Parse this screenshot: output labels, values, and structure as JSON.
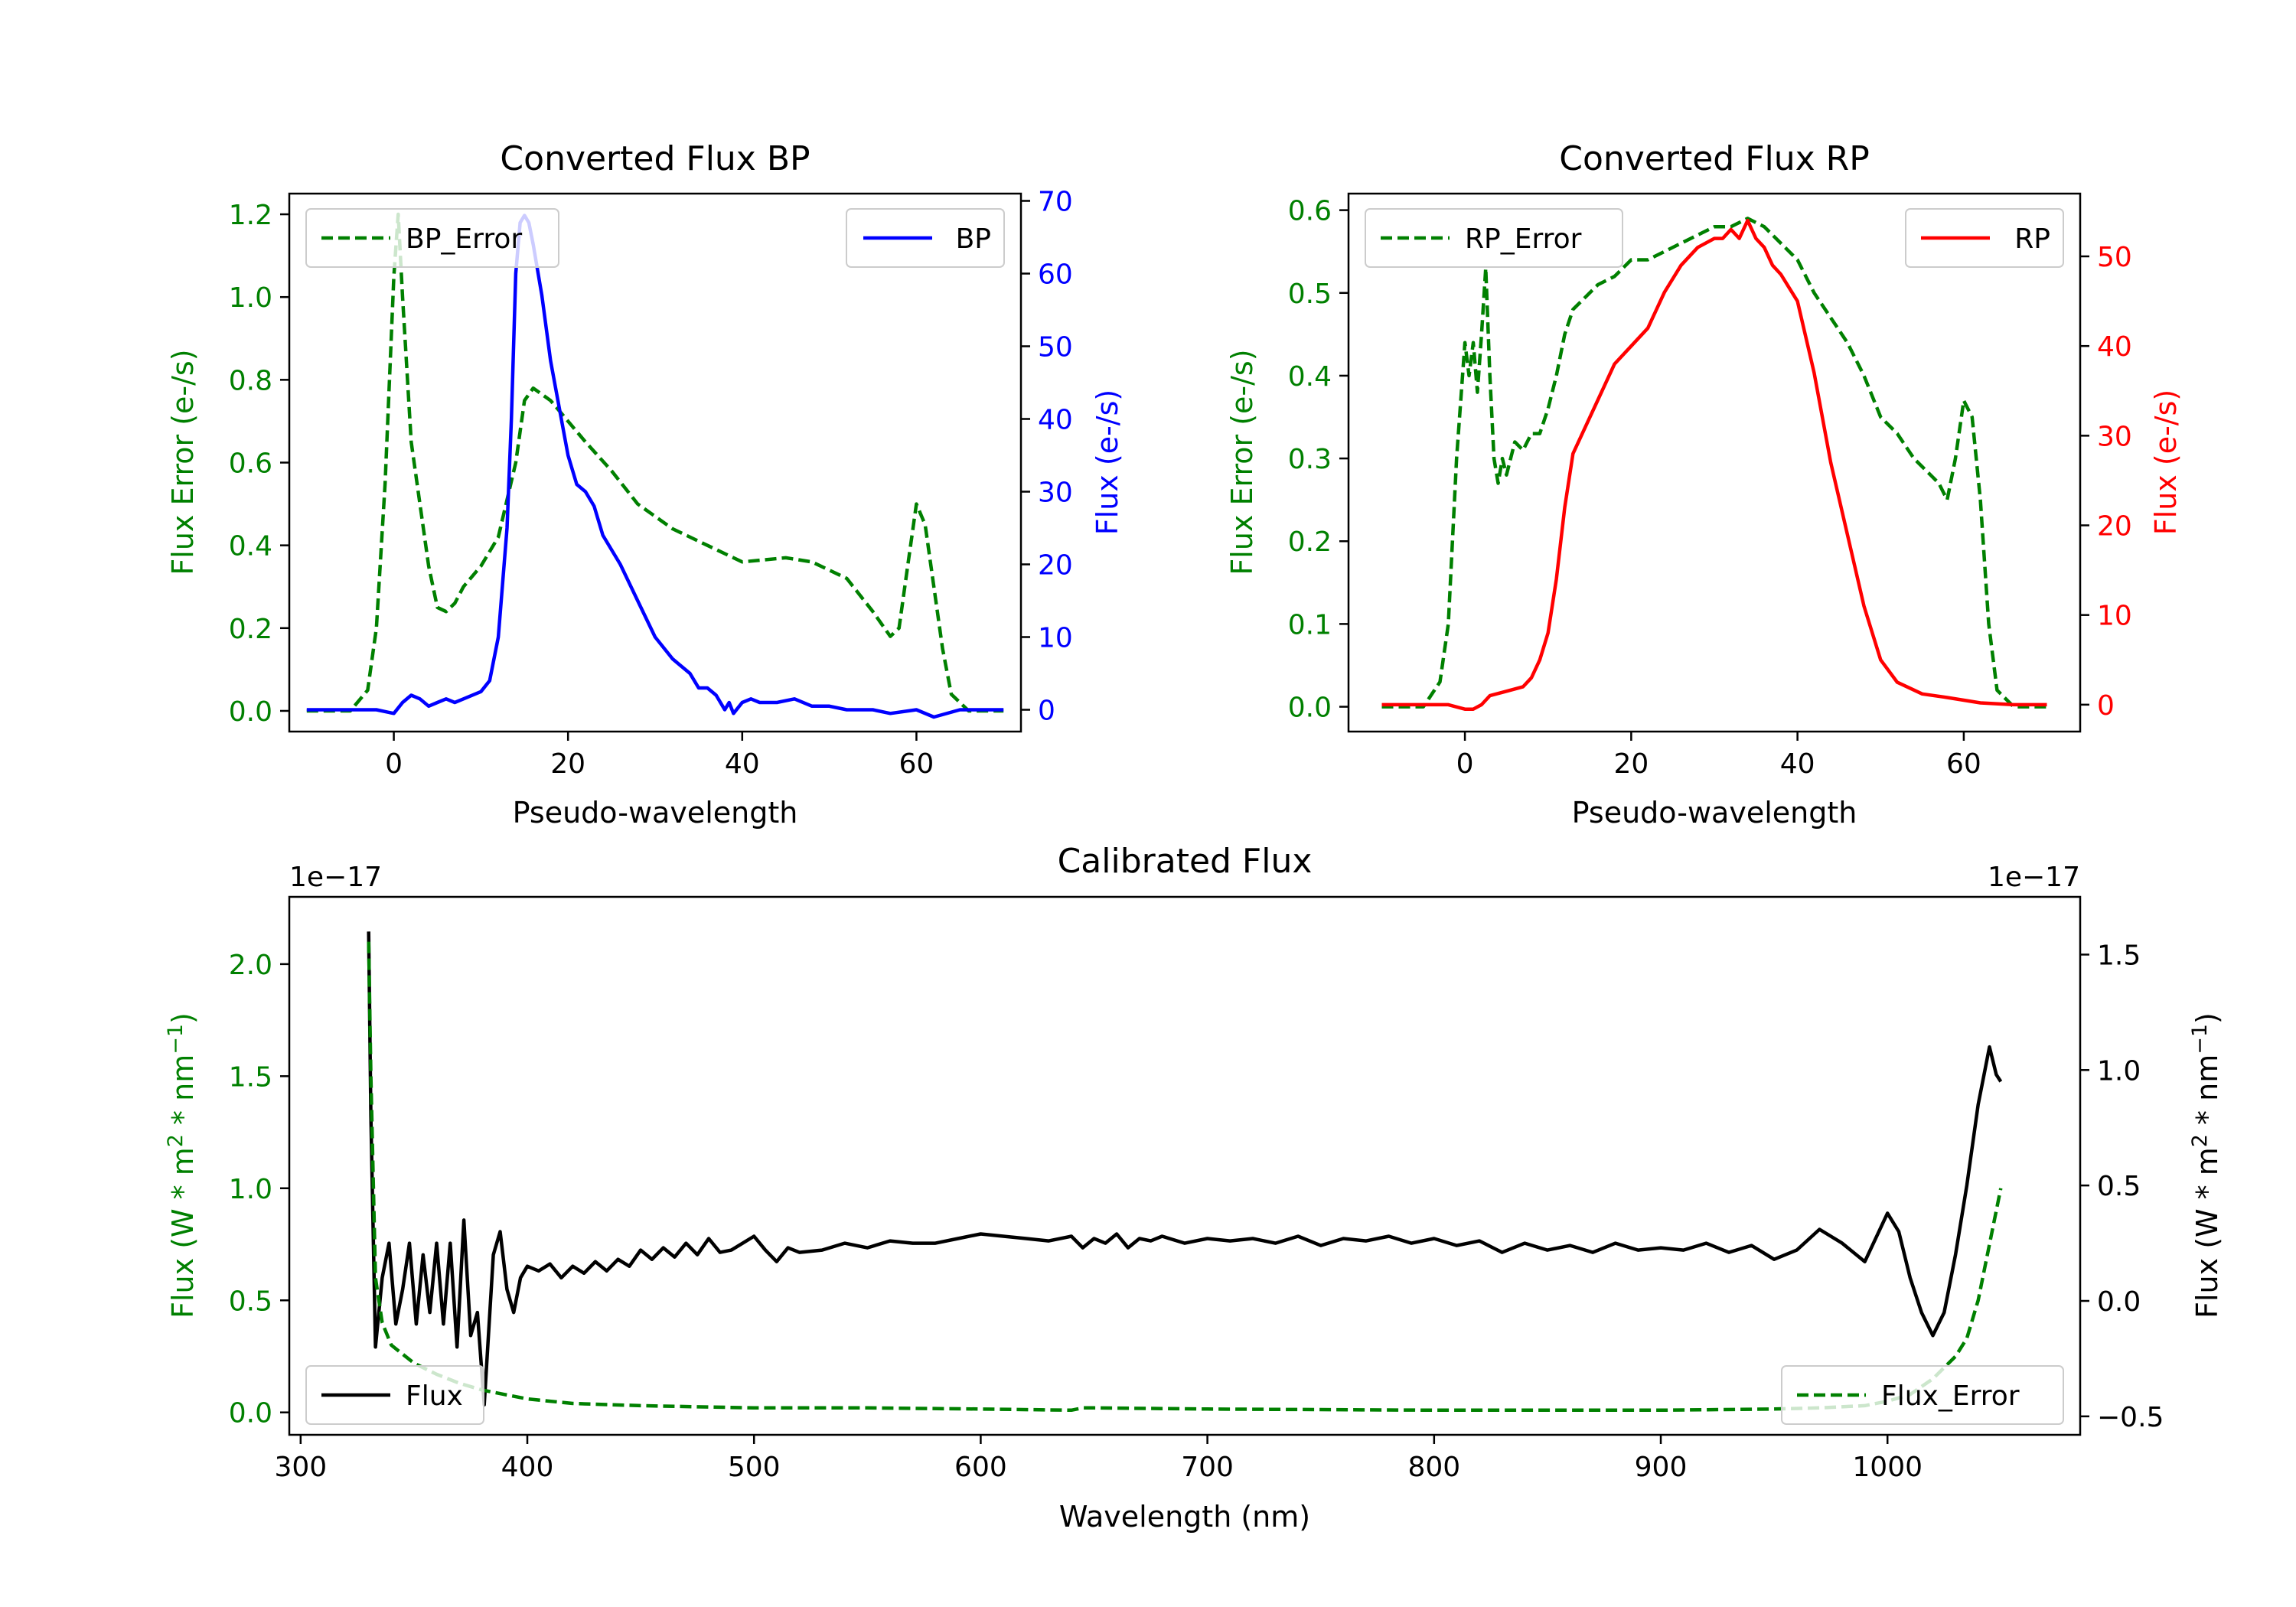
{
  "chart_data": [
    {
      "type": "line",
      "title": "Converted Flux BP",
      "xlabel": "Pseudo-wavelength",
      "ylabel_left": "Flux Error (e-/s)",
      "ylabel_right": "Flux (e-/s)",
      "xlim": [
        -12,
        72
      ],
      "ylim_left": [
        -0.05,
        1.25
      ],
      "ylim_right": [
        -3.0,
        71.0
      ],
      "xticks": [
        0,
        20,
        40,
        60
      ],
      "xtick_labels": [
        "0",
        "20",
        "40",
        "60"
      ],
      "yticks_left": [
        0.0,
        0.2,
        0.4,
        0.6,
        0.8,
        1.0,
        1.2
      ],
      "ytick_labels_left": [
        "0.0",
        "0.2",
        "0.4",
        "0.6",
        "0.8",
        "1.0",
        "1.2"
      ],
      "yticks_right": [
        0,
        10,
        20,
        30,
        40,
        50,
        60,
        70
      ],
      "ytick_labels_right": [
        "0",
        "10",
        "20",
        "30",
        "40",
        "50",
        "60",
        "70"
      ],
      "series": [
        {
          "name": "BP_Error",
          "axis": "left",
          "color": "#008000",
          "style": "dashed",
          "legend": "upper-left",
          "x": [
            -10,
            -5,
            -3,
            -2,
            -1,
            0,
            0.5,
            1,
            2,
            3,
            4,
            5,
            6,
            7,
            8,
            10,
            12,
            14,
            15,
            16,
            18,
            20,
            22,
            25,
            28,
            32,
            36,
            38,
            40,
            45,
            48,
            52,
            55,
            57,
            58,
            59,
            60,
            61,
            62,
            63,
            64,
            66,
            70
          ],
          "values": [
            0.0,
            0.0,
            0.05,
            0.2,
            0.55,
            1.05,
            1.2,
            1.0,
            0.65,
            0.5,
            0.35,
            0.25,
            0.24,
            0.26,
            0.3,
            0.35,
            0.42,
            0.6,
            0.75,
            0.78,
            0.75,
            0.7,
            0.65,
            0.58,
            0.5,
            0.44,
            0.4,
            0.38,
            0.36,
            0.37,
            0.36,
            0.32,
            0.24,
            0.18,
            0.2,
            0.35,
            0.5,
            0.45,
            0.3,
            0.15,
            0.04,
            0.0,
            0.0
          ]
        },
        {
          "name": "BP",
          "axis": "right",
          "color": "#0000ff",
          "style": "solid",
          "legend": "upper-right",
          "x": [
            -10,
            -5,
            -2,
            0,
            1,
            2,
            3,
            4,
            5,
            6,
            7,
            8,
            10,
            11,
            12,
            13,
            13.5,
            14,
            14.5,
            15,
            15.5,
            16,
            17,
            18,
            20,
            21,
            22,
            23,
            24,
            25,
            26,
            28,
            30,
            32,
            33,
            34,
            35,
            36,
            37,
            38,
            38.5,
            39,
            40,
            41,
            42,
            44,
            46,
            48,
            50,
            52,
            55,
            57,
            60,
            62,
            65,
            70
          ],
          "values": [
            0,
            0,
            0,
            -0.5,
            1,
            2,
            1.5,
            0.5,
            1,
            1.5,
            1,
            1.5,
            2.5,
            4,
            10,
            25,
            40,
            60,
            67,
            68,
            67,
            64,
            57,
            48,
            35,
            31,
            30,
            28,
            24,
            22,
            20,
            15,
            10,
            7,
            6,
            5,
            3,
            3,
            2,
            0,
            1,
            -0.5,
            1,
            1.5,
            1,
            1,
            1.5,
            0.5,
            0.5,
            0,
            0,
            -0.5,
            0,
            -1,
            0,
            0
          ]
        }
      ]
    },
    {
      "type": "line",
      "title": "Converted Flux RP",
      "xlabel": "Pseudo-wavelength",
      "ylabel_left": "Flux Error (e-/s)",
      "ylabel_right": "Flux (e-/s)",
      "xlim": [
        -14,
        74
      ],
      "ylim_left": [
        -0.03,
        0.62
      ],
      "ylim_right": [
        -3.0,
        57.0
      ],
      "xticks": [
        0,
        20,
        40,
        60
      ],
      "xtick_labels": [
        "0",
        "20",
        "40",
        "60"
      ],
      "yticks_left": [
        0.0,
        0.1,
        0.2,
        0.3,
        0.4,
        0.5,
        0.6
      ],
      "ytick_labels_left": [
        "0.0",
        "0.1",
        "0.2",
        "0.3",
        "0.4",
        "0.5",
        "0.6"
      ],
      "yticks_right": [
        0,
        10,
        20,
        30,
        40,
        50
      ],
      "ytick_labels_right": [
        "0",
        "10",
        "20",
        "30",
        "40",
        "50"
      ],
      "series": [
        {
          "name": "RP_Error",
          "axis": "left",
          "color": "#008000",
          "style": "dashed",
          "legend": "upper-left",
          "x": [
            -10,
            -5,
            -3,
            -2,
            -1,
            0,
            0.5,
            1,
            1.5,
            2,
            2.5,
            3,
            3.5,
            4,
            4.5,
            5,
            6,
            7,
            8,
            9,
            10,
            11,
            12,
            13,
            14,
            16,
            18,
            20,
            22,
            24,
            26,
            28,
            30,
            32,
            34,
            36,
            38,
            40,
            42,
            44,
            46,
            48,
            50,
            52,
            54,
            55,
            56,
            57,
            58,
            59,
            60,
            61,
            62,
            63,
            64,
            66,
            70
          ],
          "values": [
            0.0,
            0.0,
            0.03,
            0.1,
            0.3,
            0.44,
            0.4,
            0.44,
            0.38,
            0.45,
            0.53,
            0.4,
            0.3,
            0.27,
            0.3,
            0.28,
            0.32,
            0.31,
            0.33,
            0.33,
            0.36,
            0.4,
            0.45,
            0.48,
            0.49,
            0.51,
            0.52,
            0.54,
            0.54,
            0.55,
            0.56,
            0.57,
            0.58,
            0.58,
            0.59,
            0.58,
            0.56,
            0.54,
            0.5,
            0.47,
            0.44,
            0.4,
            0.35,
            0.33,
            0.3,
            0.29,
            0.28,
            0.27,
            0.25,
            0.3,
            0.37,
            0.35,
            0.25,
            0.1,
            0.02,
            0.0,
            0.0
          ]
        },
        {
          "name": "RP",
          "axis": "right",
          "color": "#ff0000",
          "style": "solid",
          "legend": "upper-right",
          "x": [
            -10,
            -5,
            -2,
            0,
            1,
            2,
            3,
            5,
            7,
            8,
            9,
            10,
            11,
            12,
            13,
            14,
            16,
            18,
            20,
            22,
            24,
            26,
            28,
            30,
            31,
            32,
            33,
            34,
            35,
            36,
            37,
            38,
            40,
            42,
            44,
            46,
            48,
            50,
            52,
            55,
            58,
            60,
            62,
            66,
            70
          ],
          "values": [
            0,
            0,
            0,
            -0.5,
            -0.5,
            0,
            1,
            1.5,
            2,
            3,
            5,
            8,
            14,
            22,
            28,
            30,
            34,
            38,
            40,
            42,
            46,
            49,
            51,
            52,
            52,
            53,
            52,
            54,
            52,
            51,
            49,
            48,
            45,
            37,
            27,
            19,
            11,
            5,
            2.5,
            1.2,
            0.8,
            0.5,
            0.2,
            0,
            0
          ]
        }
      ]
    },
    {
      "type": "line",
      "title": "Calibrated Flux",
      "xlabel": "Wavelength (nm)",
      "ylabel_left": "Flux (W * m",
      "ylabel_left_sup1": "2",
      "ylabel_left_mid": " * nm",
      "ylabel_left_sup2": "−1",
      "ylabel_left_end": ")",
      "ylabel_right": "Flux (W * m",
      "ylabel_right_sup1": "2",
      "ylabel_right_mid": " * nm",
      "ylabel_right_sup2": "−1",
      "ylabel_right_end": ")",
      "offset_left": "1e−17",
      "offset_right": "1e−17",
      "xlim": [
        295,
        1085
      ],
      "ylim_left": [
        -0.1,
        2.3
      ],
      "ylim_right": [
        -0.58,
        1.75
      ],
      "xticks": [
        300,
        400,
        500,
        600,
        700,
        800,
        900,
        1000
      ],
      "xtick_labels": [
        "300",
        "400",
        "500",
        "600",
        "700",
        "800",
        "900",
        "1000"
      ],
      "yticks_left": [
        0.0,
        0.5,
        1.0,
        1.5,
        2.0
      ],
      "ytick_labels_left": [
        "0.0",
        "0.5",
        "1.0",
        "1.5",
        "2.0"
      ],
      "yticks_right": [
        -0.5,
        0.0,
        0.5,
        1.0,
        1.5
      ],
      "ytick_labels_right": [
        "−0.5",
        "0.0",
        "0.5",
        "1.0",
        "1.5"
      ],
      "series": [
        {
          "name": "Flux",
          "axis": "right",
          "color": "#000000",
          "style": "solid",
          "legend": "lower-left",
          "x": [
            330,
            331,
            333,
            336,
            339,
            342,
            345,
            348,
            351,
            354,
            357,
            360,
            363,
            366,
            369,
            372,
            375,
            378,
            381,
            385,
            388,
            391,
            394,
            397,
            400,
            405,
            410,
            415,
            420,
            425,
            430,
            435,
            440,
            445,
            450,
            455,
            460,
            465,
            470,
            475,
            480,
            485,
            490,
            495,
            500,
            505,
            510,
            515,
            520,
            530,
            540,
            550,
            560,
            570,
            580,
            590,
            600,
            610,
            620,
            630,
            640,
            645,
            650,
            655,
            660,
            665,
            670,
            675,
            680,
            690,
            700,
            710,
            720,
            730,
            740,
            750,
            760,
            770,
            780,
            790,
            800,
            810,
            820,
            830,
            840,
            850,
            860,
            870,
            880,
            890,
            900,
            910,
            920,
            930,
            940,
            950,
            960,
            970,
            980,
            990,
            1000,
            1005,
            1010,
            1015,
            1020,
            1025,
            1030,
            1035,
            1040,
            1045,
            1048,
            1050
          ],
          "values": [
            1.6,
            0.8,
            -0.2,
            0.1,
            0.25,
            -0.1,
            0.05,
            0.25,
            -0.1,
            0.2,
            -0.05,
            0.25,
            -0.1,
            0.25,
            -0.2,
            0.35,
            -0.15,
            -0.05,
            -0.45,
            0.2,
            0.3,
            0.05,
            -0.05,
            0.1,
            0.15,
            0.13,
            0.16,
            0.1,
            0.15,
            0.12,
            0.17,
            0.13,
            0.18,
            0.15,
            0.22,
            0.18,
            0.23,
            0.19,
            0.25,
            0.2,
            0.27,
            0.21,
            0.22,
            0.25,
            0.28,
            0.22,
            0.17,
            0.23,
            0.21,
            0.22,
            0.25,
            0.23,
            0.26,
            0.25,
            0.25,
            0.27,
            0.29,
            0.28,
            0.27,
            0.26,
            0.28,
            0.23,
            0.27,
            0.25,
            0.29,
            0.23,
            0.27,
            0.26,
            0.28,
            0.25,
            0.27,
            0.26,
            0.27,
            0.25,
            0.28,
            0.24,
            0.27,
            0.26,
            0.28,
            0.25,
            0.27,
            0.24,
            0.26,
            0.21,
            0.25,
            0.22,
            0.24,
            0.21,
            0.25,
            0.22,
            0.23,
            0.22,
            0.25,
            0.21,
            0.24,
            0.18,
            0.22,
            0.31,
            0.25,
            0.17,
            0.38,
            0.3,
            0.1,
            -0.05,
            -0.15,
            -0.05,
            0.2,
            0.5,
            0.85,
            1.1,
            0.98,
            0.95
          ]
        },
        {
          "name": "Flux_Error",
          "axis": "left",
          "color": "#008000",
          "style": "dashed",
          "legend": "lower-right",
          "x": [
            330,
            331,
            333,
            336,
            340,
            350,
            360,
            370,
            380,
            390,
            400,
            420,
            450,
            500,
            550,
            600,
            640,
            645,
            650,
            700,
            800,
            900,
            950,
            970,
            990,
            1000,
            1010,
            1020,
            1030,
            1035,
            1040,
            1045,
            1050
          ],
          "values": [
            2.1,
            1.5,
            0.6,
            0.4,
            0.3,
            0.22,
            0.17,
            0.13,
            0.1,
            0.08,
            0.06,
            0.04,
            0.03,
            0.02,
            0.02,
            0.015,
            0.01,
            0.02,
            0.02,
            0.015,
            0.01,
            0.01,
            0.015,
            0.02,
            0.03,
            0.05,
            0.08,
            0.15,
            0.25,
            0.33,
            0.5,
            0.75,
            1.0
          ]
        }
      ]
    }
  ]
}
